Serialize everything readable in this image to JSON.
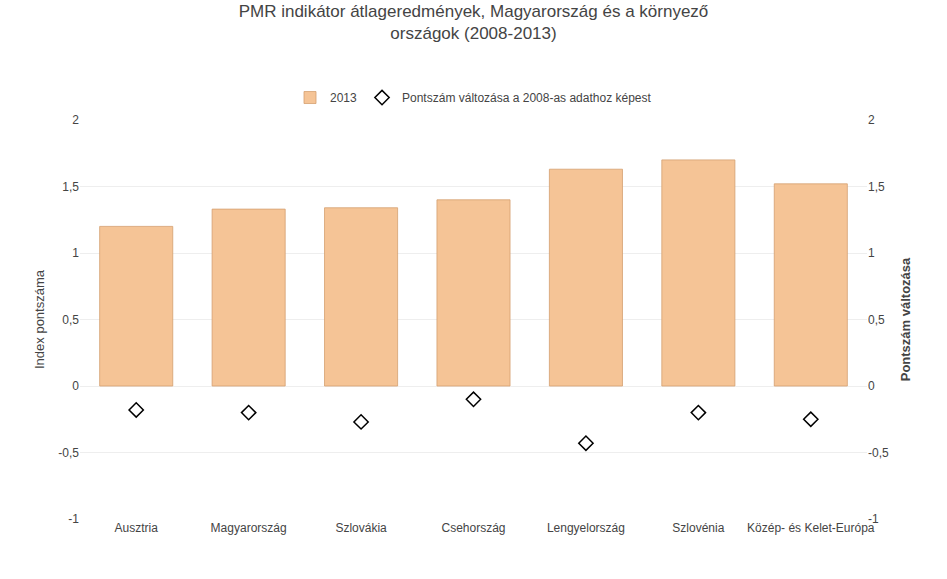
{
  "chart_data": {
    "type": "bar",
    "title": "PMR indikátor átlageredmények, Magyarország és a környező\nországok (2008-2013)",
    "categories": [
      "Ausztria",
      "Magyarország",
      "Szlovákia",
      "Csehország",
      "Lengyelország",
      "Szlovénia",
      "Közép- és Kelet-Európa"
    ],
    "y_label": "Index pontszáma",
    "y2_label": "Pontszám változása",
    "series": [
      {
        "name": "2013",
        "type": "bar",
        "color": "#F5C496",
        "values": [
          1.2,
          1.33,
          1.34,
          1.4,
          1.63,
          1.7,
          1.52
        ]
      },
      {
        "name": "Pontszám változása a 2008-as adathoz képest",
        "type": "scatter",
        "marker": "diamond",
        "color": "#000000",
        "axis": "y2",
        "values": [
          -0.18,
          -0.2,
          -0.27,
          -0.1,
          -0.43,
          -0.2,
          -0.25
        ]
      }
    ],
    "ylim": [
      -1,
      2
    ],
    "yticks": [
      -1,
      {
        "value": -0.5,
        "label": "-0,5"
      },
      0,
      {
        "value": 0.5,
        "label": "0,5"
      },
      1,
      {
        "value": 1.5,
        "label": "1,5"
      },
      2
    ],
    "y2lim": [
      -1,
      2
    ],
    "y2ticks": [
      -1,
      {
        "value": -0.5,
        "label": "-0,5"
      },
      0,
      {
        "value": 0.5,
        "label": "0,5"
      },
      1,
      {
        "value": 1.5,
        "label": "1,5"
      },
      2
    ],
    "grid": true,
    "legend": "top"
  }
}
